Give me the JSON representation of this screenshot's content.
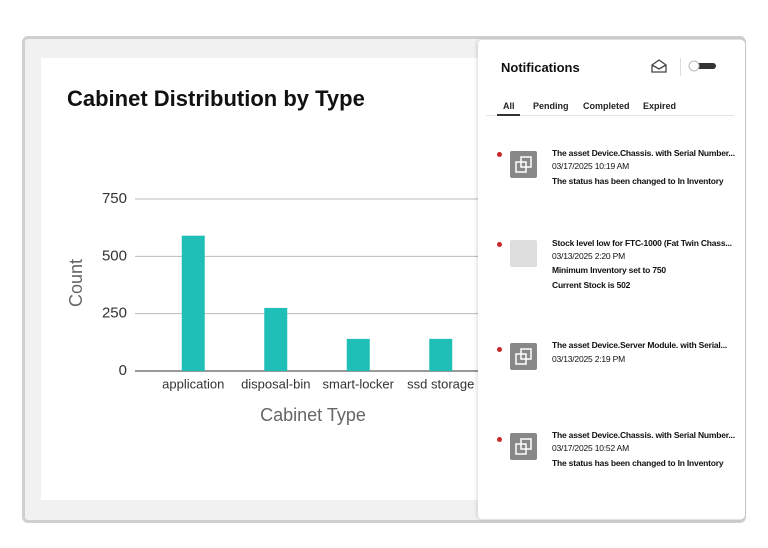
{
  "chart_data": {
    "type": "bar",
    "title": "Cabinet Distribution by Type",
    "categories": [
      "application",
      "disposal-bin",
      "smart-locker",
      "ssd storage"
    ],
    "values": [
      590,
      275,
      140,
      140
    ],
    "color": "#1fbfb8",
    "xlabel": "Cabinet Type",
    "ylabel": "Count",
    "ylim": [
      0,
      750
    ],
    "yticks": [
      0,
      250,
      500,
      750
    ],
    "grid": true
  },
  "notifications": {
    "title": "Notifications",
    "tabs": [
      "All",
      "Pending",
      "Completed",
      "Expired"
    ],
    "items": [
      {
        "title": "The asset Device.Chassis. with Serial Number...",
        "date": "03/17/2025 10:19 AM",
        "lines": [
          "The status has been changed to In Inventory"
        ]
      },
      {
        "title": "Stock level low for FTC-1000 (Fat Twin Chass...",
        "date": "03/13/2025 2:20 PM",
        "lines": [
          "Minimum Inventory set to 750",
          "Current Stock is 502"
        ]
      },
      {
        "title": "The asset Device.Server Module. with Serial...",
        "date": "03/13/2025 2:19 PM",
        "lines": []
      },
      {
        "title": "The asset Device.Chassis. with Serial Number...",
        "date": "03/17/2025 10:52 AM",
        "lines": [
          "The status has been changed to In Inventory"
        ]
      }
    ]
  }
}
